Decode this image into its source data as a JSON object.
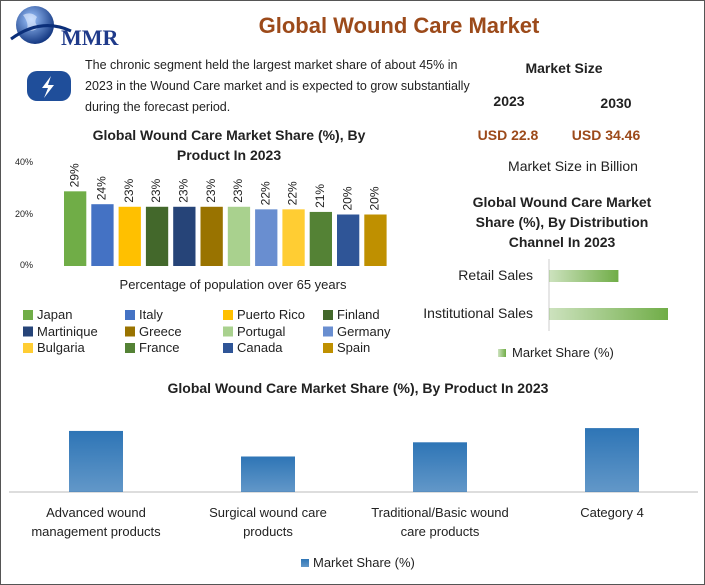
{
  "header": {
    "logo": "MMR",
    "title": "Global Wound Care Market"
  },
  "description": "The chronic segment held the largest market share of about 45% in 2023 in the Wound Care market and is expected to grow substantially during the forecast period.",
  "market_size": {
    "title": "Market Size",
    "years": [
      "2023",
      "2030"
    ],
    "values": [
      "USD 22.8",
      "USD 34.46"
    ],
    "note": "Market Size in Billion"
  },
  "chart_data": [
    {
      "type": "bar",
      "title": "Global Wound Care Market Share (%), By Product In 2023",
      "xlabel": "Percentage of population over 65 years",
      "categories": [
        "Japan",
        "Italy",
        "Puerto Rico",
        "Finland",
        "Martinique",
        "Greece",
        "Portugal",
        "Germany",
        "Bulgaria",
        "France",
        "Canada",
        "Spain"
      ],
      "values": [
        29,
        24,
        23,
        23,
        23,
        23,
        23,
        22,
        22,
        21,
        20,
        20
      ],
      "value_labels": [
        "29%",
        "24%",
        "23%",
        "23%",
        "23%",
        "23%",
        "23%",
        "22%",
        "22%",
        "21%",
        "20%",
        "20%"
      ],
      "colors": [
        "#70ad47",
        "#4472c4",
        "#ffc000",
        "#43682b",
        "#264478",
        "#997300",
        "#a9d18e",
        "#698ed0",
        "#ffcd33",
        "#548235",
        "#2f5597",
        "#bf9000"
      ],
      "ylim": [
        0,
        40
      ],
      "yticks": [
        {
          "value": 0,
          "label": "0%"
        },
        {
          "value": 20,
          "label": "20%"
        },
        {
          "value": 40,
          "label": "40%"
        }
      ],
      "grid": false
    },
    {
      "type": "hbar",
      "title": "Global Wound Care Market Share (%), By Distribution Channel In 2023",
      "categories": [
        "Retail Sales",
        "Institutional Sales"
      ],
      "series": [
        {
          "name": "Market Share (%)",
          "color": "#70ad47",
          "values": [
            35,
            60
          ]
        }
      ],
      "xlim": [
        0,
        60
      ]
    },
    {
      "type": "bar",
      "title": "Global Wound Care Market Share (%), By Product In 2023",
      "categories": [
        "Advanced wound management products",
        "Surgical wound care products",
        "Traditional/Basic wound care products",
        "Category 4"
      ],
      "series": [
        {
          "name": "Market Share (%)",
          "color": "#2e75b6",
          "values": [
            4.3,
            2.5,
            3.5,
            4.5
          ]
        }
      ],
      "ylim": [
        0,
        5
      ]
    }
  ]
}
